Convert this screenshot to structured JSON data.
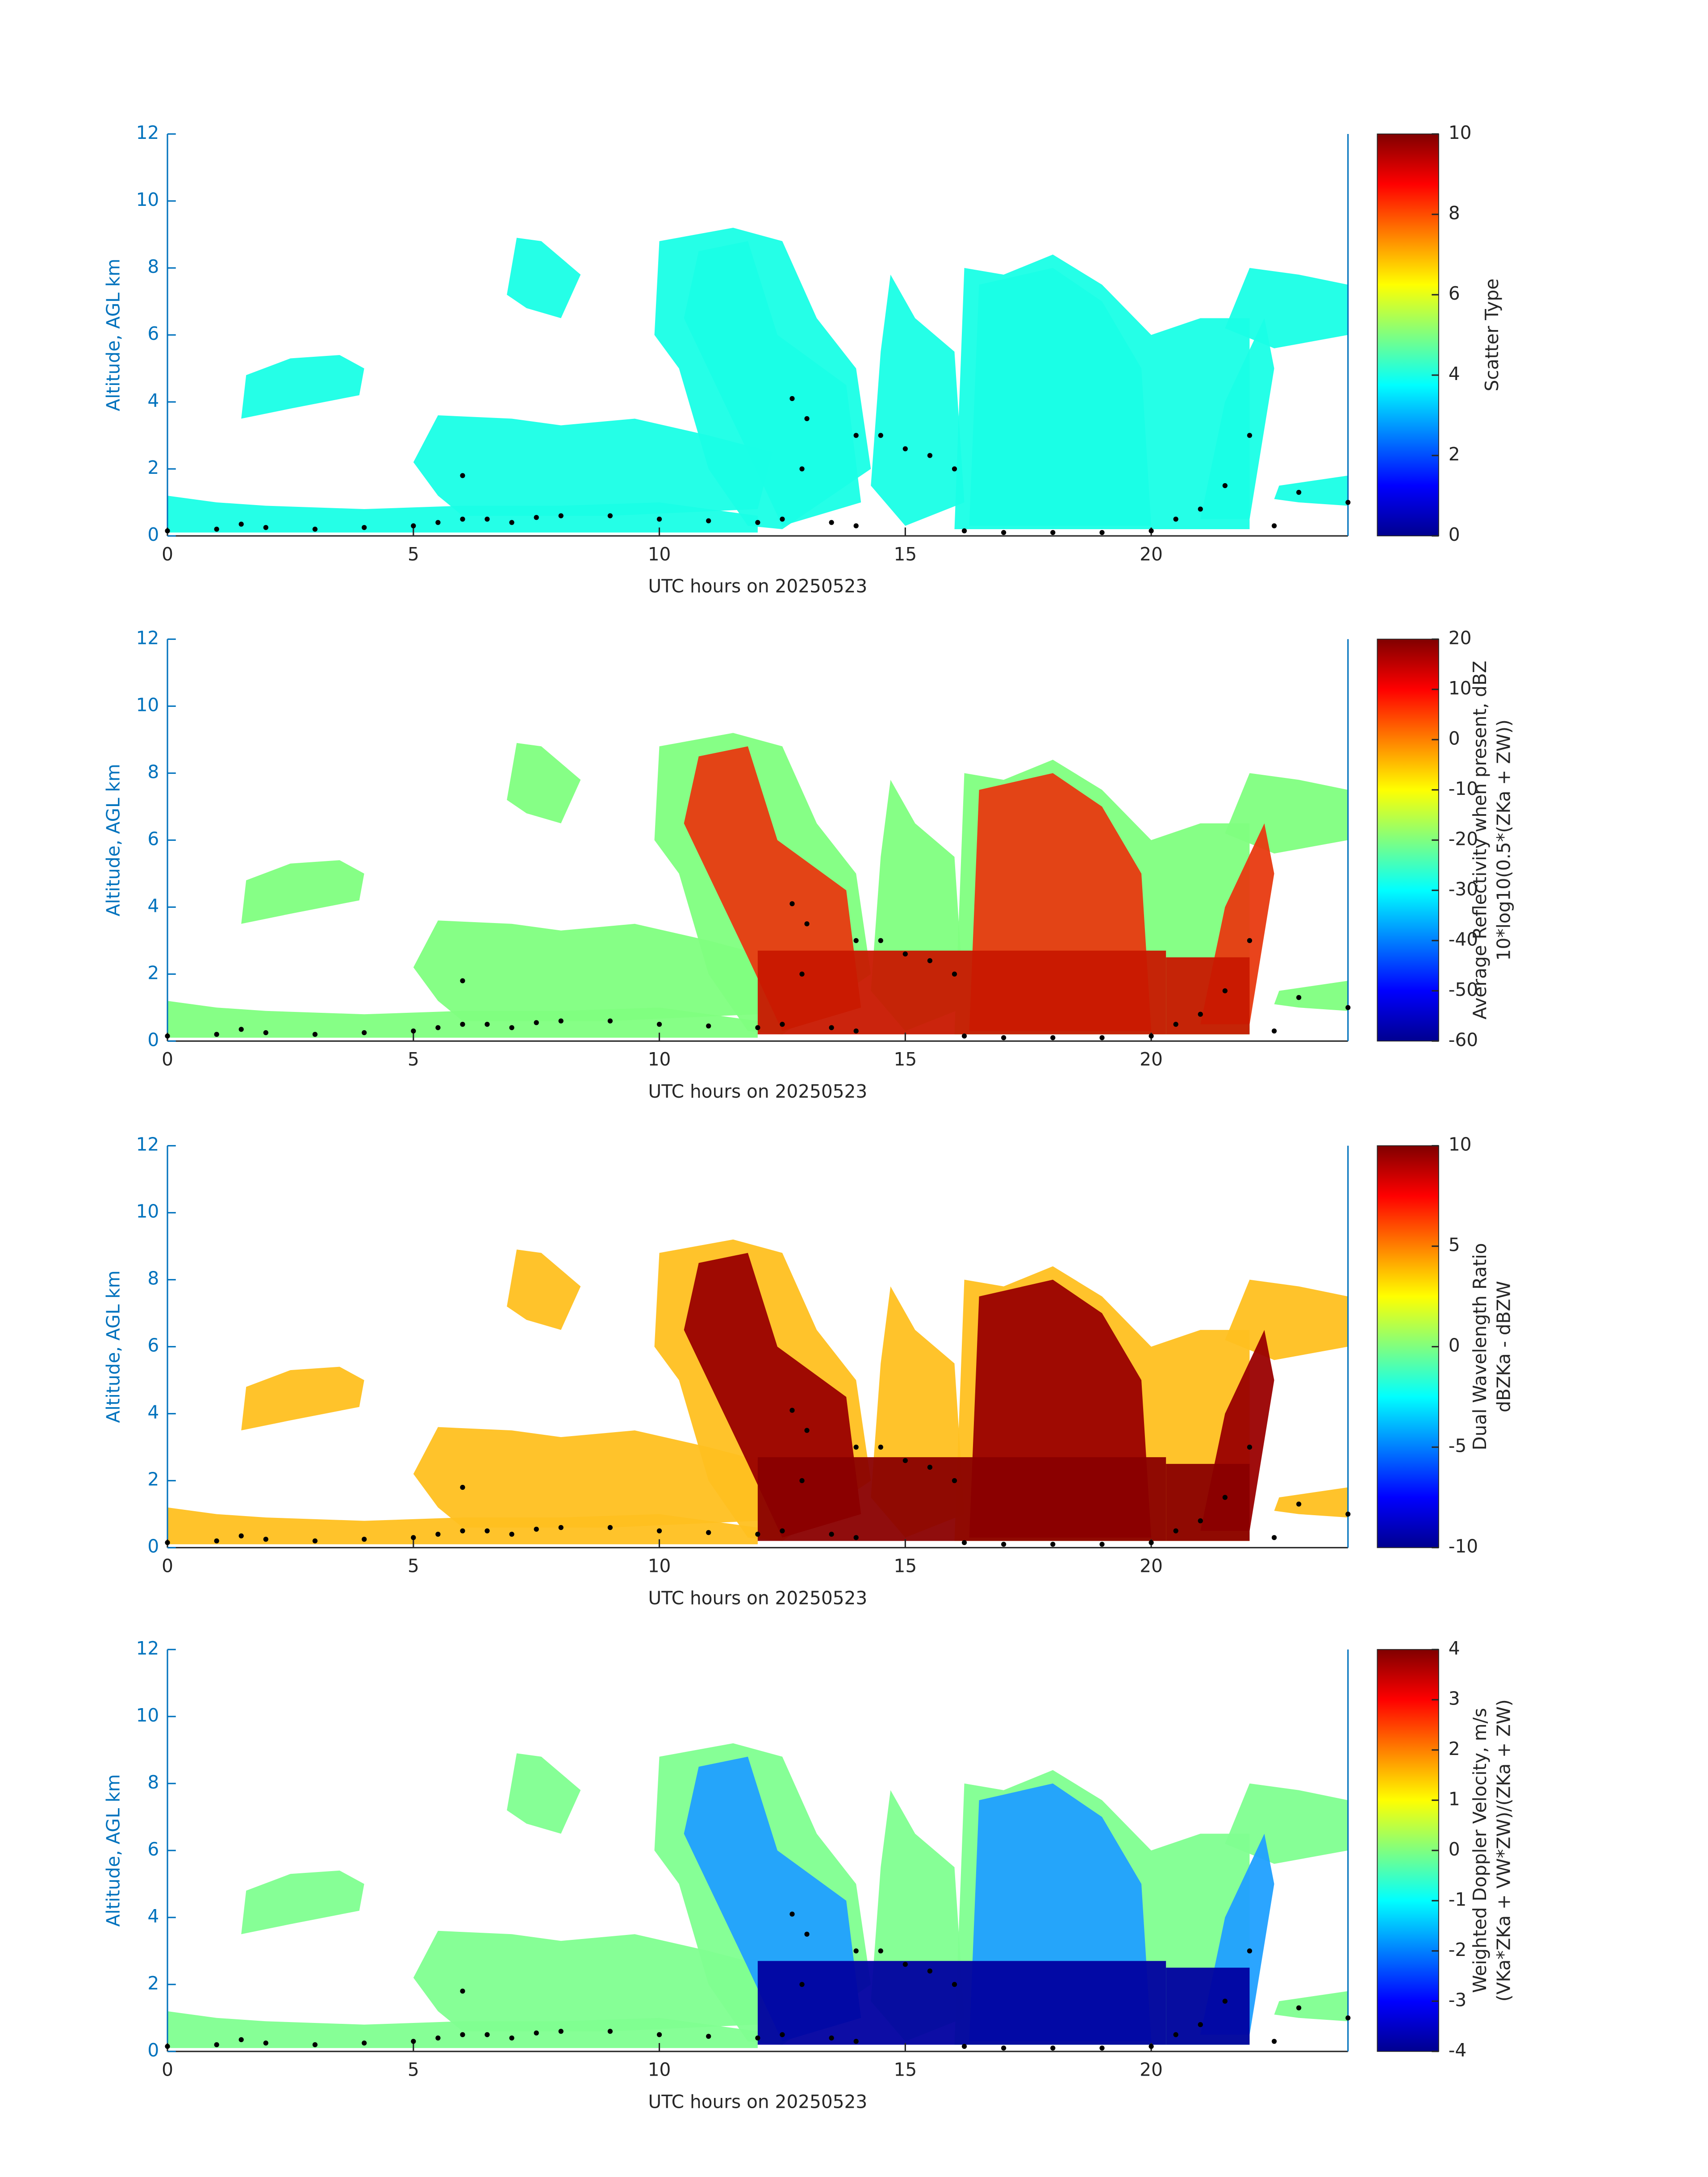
{
  "chart_data": [
    {
      "type": "heatmap",
      "colormap": "jet",
      "xlabel": "UTC hours on 20250523",
      "ylabel": "Altitude, AGL km",
      "xlim": [
        0,
        24
      ],
      "xticks": [
        0,
        5,
        10,
        15,
        20
      ],
      "ylim": [
        0,
        12
      ],
      "yticks": [
        0,
        2,
        4,
        6,
        8,
        10,
        12
      ],
      "colorbar_label": [
        "Scatter Type"
      ],
      "clim": [
        0,
        10
      ],
      "cticks": [
        0,
        2,
        4,
        6,
        8,
        10
      ],
      "cloud_base": {
        "color": "#000000",
        "x": [
          0,
          1,
          1.5,
          2,
          3,
          4,
          5,
          5.5,
          6,
          6,
          6.5,
          7,
          7.5,
          8,
          9,
          10,
          11,
          12,
          12.5,
          12.7,
          12.9,
          13,
          13.5,
          14,
          14.5,
          14,
          15,
          15.5,
          16,
          16.2,
          17,
          18,
          19,
          20,
          20.5,
          21,
          21.5,
          22,
          22.5,
          23,
          24
        ],
        "y": [
          0.15,
          0.2,
          0.35,
          0.25,
          0.2,
          0.25,
          0.3,
          0.4,
          0.5,
          1.8,
          0.5,
          0.4,
          0.55,
          0.6,
          0.6,
          0.5,
          0.45,
          0.4,
          0.5,
          4.1,
          2,
          3.5,
          0.4,
          3,
          3,
          0.3,
          2.6,
          2.4,
          2,
          0.15,
          0.1,
          0.1,
          0.1,
          0.15,
          0.5,
          0.8,
          1.5,
          3,
          0.3,
          1.3,
          1
        ]
      }
    },
    {
      "type": "heatmap",
      "colormap": "jet",
      "xlabel": "UTC hours on 20250523",
      "ylabel": "Altitude, AGL km",
      "xlim": [
        0,
        24
      ],
      "xticks": [
        0,
        5,
        10,
        15,
        20
      ],
      "ylim": [
        0,
        12
      ],
      "yticks": [
        0,
        2,
        4,
        6,
        8,
        10,
        12
      ],
      "colorbar_label": [
        "Average Reflectivity when present, dBZ",
        "10*log10(0.5*(ZKa + ZW))"
      ],
      "clim": [
        -60,
        20
      ],
      "cticks": [
        -60,
        -50,
        -40,
        -30,
        -20,
        -10,
        0,
        10,
        20
      ],
      "cloud_base": {
        "color": "#000000",
        "x": [
          0,
          1,
          1.5,
          2,
          3,
          4,
          5,
          5.5,
          6,
          6,
          6.5,
          7,
          7.5,
          8,
          9,
          10,
          11,
          12,
          12.5,
          12.7,
          12.9,
          13,
          13.5,
          14,
          14.5,
          14,
          15,
          15.5,
          16,
          16.2,
          17,
          18,
          19,
          20,
          20.5,
          21,
          21.5,
          22,
          22.5,
          23,
          24
        ],
        "y": [
          0.15,
          0.2,
          0.35,
          0.25,
          0.2,
          0.25,
          0.3,
          0.4,
          0.5,
          1.8,
          0.5,
          0.4,
          0.55,
          0.6,
          0.6,
          0.5,
          0.45,
          0.4,
          0.5,
          4.1,
          2,
          3.5,
          0.4,
          3,
          3,
          0.3,
          2.6,
          2.4,
          2,
          0.15,
          0.1,
          0.1,
          0.1,
          0.15,
          0.5,
          0.8,
          1.5,
          3,
          0.3,
          1.3,
          1
        ]
      }
    },
    {
      "type": "heatmap",
      "colormap": "jet",
      "xlabel": "UTC hours on 20250523",
      "ylabel": "Altitude, AGL km",
      "xlim": [
        0,
        24
      ],
      "xticks": [
        0,
        5,
        10,
        15,
        20
      ],
      "ylim": [
        0,
        12
      ],
      "yticks": [
        0,
        2,
        4,
        6,
        8,
        10,
        12
      ],
      "colorbar_label": [
        "Dual Wavelength Ratio",
        "dBZKa - dBZW"
      ],
      "clim": [
        -10,
        10
      ],
      "cticks": [
        -10,
        -5,
        0,
        5,
        10
      ],
      "cloud_base": {
        "color": "#000000",
        "x": [
          0,
          1,
          1.5,
          2,
          3,
          4,
          5,
          5.5,
          6,
          6,
          6.5,
          7,
          7.5,
          8,
          9,
          10,
          11,
          12,
          12.5,
          12.7,
          12.9,
          13,
          13.5,
          14,
          14.5,
          14,
          15,
          15.5,
          16,
          16.2,
          17,
          18,
          19,
          20,
          20.5,
          21,
          21.5,
          22,
          22.5,
          23,
          24
        ],
        "y": [
          0.15,
          0.2,
          0.35,
          0.25,
          0.2,
          0.25,
          0.3,
          0.4,
          0.5,
          1.8,
          0.5,
          0.4,
          0.55,
          0.6,
          0.6,
          0.5,
          0.45,
          0.4,
          0.5,
          4.1,
          2,
          3.5,
          0.4,
          3,
          3,
          0.3,
          2.6,
          2.4,
          2,
          0.15,
          0.1,
          0.1,
          0.1,
          0.15,
          0.5,
          0.8,
          1.5,
          3,
          0.3,
          1.3,
          1
        ]
      }
    },
    {
      "type": "heatmap",
      "colormap": "jet",
      "xlabel": "UTC hours on 20250523",
      "ylabel": "Altitude, AGL km",
      "xlim": [
        0,
        24
      ],
      "xticks": [
        0,
        5,
        10,
        15,
        20
      ],
      "ylim": [
        0,
        12
      ],
      "yticks": [
        0,
        2,
        4,
        6,
        8,
        10,
        12
      ],
      "colorbar_label": [
        "Weighted Doppler Velocity, m/s",
        "(VKa*ZKa + VW*ZW)/(ZKa + ZW)"
      ],
      "clim": [
        -4,
        4
      ],
      "cticks": [
        -4,
        -3,
        -2,
        -1,
        0,
        1,
        2,
        3,
        4
      ],
      "cloud_base": {
        "color": "#000000",
        "x": [
          0,
          1,
          1.5,
          2,
          3,
          4,
          5,
          5.5,
          6,
          6,
          6.5,
          7,
          7.5,
          8,
          9,
          10,
          11,
          12,
          12.5,
          12.7,
          12.9,
          13,
          13.5,
          14,
          14.5,
          14,
          15,
          15.5,
          16,
          16.2,
          17,
          18,
          19,
          20,
          20.5,
          21,
          21.5,
          22,
          22.5,
          23,
          24
        ],
        "y": [
          0.15,
          0.2,
          0.35,
          0.25,
          0.2,
          0.25,
          0.3,
          0.4,
          0.5,
          1.8,
          0.5,
          0.4,
          0.55,
          0.6,
          0.6,
          0.5,
          0.45,
          0.4,
          0.5,
          4.1,
          2,
          3.5,
          0.4,
          3,
          3,
          0.3,
          2.6,
          2.4,
          2,
          0.15,
          0.1,
          0.1,
          0.1,
          0.15,
          0.5,
          0.8,
          1.5,
          3,
          0.3,
          1.3,
          1
        ]
      }
    }
  ]
}
